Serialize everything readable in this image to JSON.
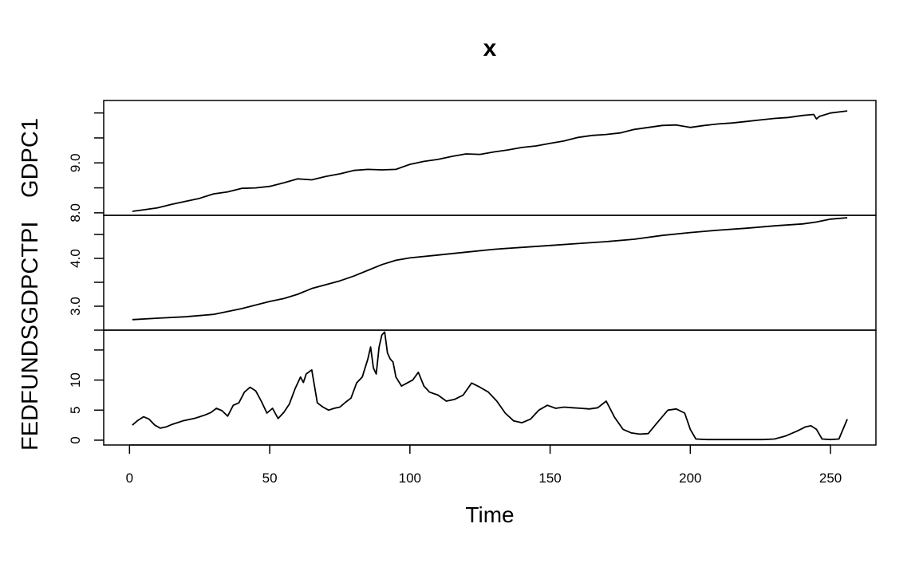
{
  "chart_data": {
    "type": "line",
    "title": "x",
    "xlabel": "Time",
    "xlim": [
      1,
      256
    ],
    "xticks": [
      0,
      50,
      100,
      150,
      200,
      250
    ],
    "panels": [
      {
        "name": "GDPC1",
        "ylim": [
          7.95,
          10.25
        ],
        "yticks": [
          8.0,
          8.5,
          9.0,
          9.5,
          10.0
        ],
        "ytick_labels": [
          "8.0",
          "",
          "9.0",
          "",
          ""
        ],
        "x": [
          1,
          5,
          10,
          15,
          20,
          25,
          30,
          35,
          40,
          45,
          50,
          55,
          60,
          65,
          70,
          75,
          80,
          85,
          90,
          95,
          100,
          105,
          110,
          115,
          120,
          125,
          130,
          135,
          140,
          145,
          150,
          155,
          160,
          165,
          170,
          175,
          180,
          185,
          190,
          195,
          200,
          205,
          210,
          215,
          220,
          225,
          230,
          235,
          240,
          244,
          245,
          246,
          250,
          256
        ],
        "values": [
          8.03,
          8.06,
          8.1,
          8.17,
          8.23,
          8.29,
          8.38,
          8.42,
          8.49,
          8.5,
          8.53,
          8.6,
          8.68,
          8.66,
          8.73,
          8.78,
          8.85,
          8.87,
          8.86,
          8.87,
          8.97,
          9.03,
          9.07,
          9.13,
          9.18,
          9.17,
          9.22,
          9.26,
          9.31,
          9.34,
          9.39,
          9.44,
          9.51,
          9.55,
          9.57,
          9.6,
          9.67,
          9.71,
          9.75,
          9.76,
          9.71,
          9.75,
          9.78,
          9.8,
          9.83,
          9.86,
          9.89,
          9.91,
          9.95,
          9.97,
          9.88,
          9.93,
          10.0,
          10.04
        ]
      },
      {
        "name": "GDPCTPI",
        "ylim": [
          2.5,
          4.9
        ],
        "yticks": [
          2.5,
          3.0,
          3.5,
          4.0,
          4.5,
          5.0
        ],
        "ytick_labels": [
          "",
          "3.0",
          "",
          "4.0",
          "",
          ""
        ],
        "x": [
          1,
          10,
          20,
          30,
          40,
          50,
          55,
          60,
          65,
          70,
          75,
          80,
          85,
          90,
          95,
          100,
          110,
          120,
          130,
          140,
          150,
          160,
          170,
          180,
          190,
          200,
          210,
          220,
          230,
          240,
          245,
          250,
          256
        ],
        "values": [
          2.72,
          2.75,
          2.78,
          2.83,
          2.95,
          3.1,
          3.16,
          3.25,
          3.37,
          3.45,
          3.53,
          3.63,
          3.75,
          3.87,
          3.96,
          4.01,
          4.07,
          4.13,
          4.19,
          4.23,
          4.27,
          4.31,
          4.35,
          4.4,
          4.48,
          4.54,
          4.59,
          4.63,
          4.68,
          4.72,
          4.76,
          4.82,
          4.85
        ]
      },
      {
        "name": "FEDFUNDS",
        "ylim": [
          -0.8,
          18.3
        ],
        "yticks": [
          0,
          5,
          10,
          15
        ],
        "ytick_labels": [
          "0",
          "5",
          "10",
          ""
        ],
        "x": [
          1,
          3,
          5,
          7,
          9,
          11,
          13,
          15,
          17,
          19,
          21,
          23,
          25,
          27,
          29,
          31,
          33,
          35,
          37,
          39,
          41,
          43,
          45,
          47,
          49,
          51,
          53,
          55,
          57,
          59,
          61,
          62,
          63,
          65,
          67,
          69,
          71,
          73,
          75,
          77,
          79,
          81,
          83,
          85,
          86,
          87,
          88,
          89,
          90,
          91,
          92,
          93,
          94,
          95,
          97,
          99,
          101,
          103,
          105,
          107,
          110,
          113,
          116,
          119,
          122,
          125,
          128,
          131,
          134,
          137,
          140,
          143,
          146,
          149,
          152,
          155,
          158,
          161,
          164,
          167,
          170,
          173,
          176,
          179,
          182,
          185,
          188,
          192,
          195,
          198,
          200,
          202,
          206,
          210,
          214,
          218,
          222,
          226,
          230,
          234,
          238,
          241,
          243,
          245,
          247,
          250,
          253,
          256
        ],
        "values": [
          2.5,
          3.3,
          3.9,
          3.5,
          2.5,
          2.0,
          2.2,
          2.6,
          2.9,
          3.2,
          3.4,
          3.6,
          3.9,
          4.2,
          4.6,
          5.3,
          4.9,
          4.0,
          5.8,
          6.2,
          8.0,
          8.8,
          8.2,
          6.5,
          4.5,
          5.3,
          3.6,
          4.6,
          6.0,
          8.5,
          10.5,
          9.6,
          11.0,
          11.7,
          6.2,
          5.5,
          5.0,
          5.3,
          5.5,
          6.3,
          7.0,
          9.5,
          10.5,
          13.5,
          15.5,
          12.0,
          11.0,
          15.5,
          17.5,
          18.0,
          14.5,
          13.5,
          13.0,
          10.5,
          9.0,
          9.5,
          10.0,
          11.3,
          9.0,
          8.0,
          7.5,
          6.5,
          6.8,
          7.5,
          9.5,
          8.8,
          8.0,
          6.5,
          4.5,
          3.2,
          2.9,
          3.5,
          5.0,
          5.8,
          5.3,
          5.5,
          5.4,
          5.3,
          5.2,
          5.4,
          6.5,
          3.8,
          1.8,
          1.2,
          1.0,
          1.1,
          2.8,
          5.0,
          5.2,
          4.5,
          1.8,
          0.2,
          0.1,
          0.1,
          0.1,
          0.1,
          0.1,
          0.1,
          0.2,
          0.7,
          1.5,
          2.2,
          2.4,
          1.8,
          0.2,
          0.1,
          0.2,
          3.5
        ]
      }
    ]
  }
}
